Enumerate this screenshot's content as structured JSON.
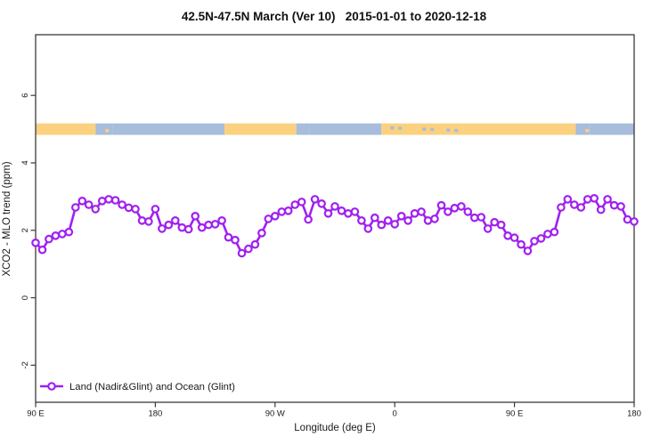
{
  "figure": {
    "title": "42.5N-47.5N March (Ver 10)   2015-01-01 to 2020-12-18"
  },
  "legend": {
    "label": "Land (Nadir&Glint) and Ocean (Glint)"
  },
  "colors": {
    "series": "#A020F0",
    "marker_fill": "#FFFFFF",
    "land_band": "#FBD17F",
    "ocean_band": "#A8BCDC",
    "axis": "#3A3A3A",
    "text": "#1A1A1A",
    "background": "#FFFFFF"
  },
  "chart_data": {
    "type": "line",
    "title": "42.5N-47.5N March (Ver 10)   2015-01-01 to 2020-12-18",
    "xlabel": "Longitude (deg E)",
    "ylabel": "XCO2 - MLO trend (ppm)",
    "xlim": [
      90,
      540
    ],
    "ylim": [
      -3.1,
      7.8
    ],
    "grid": false,
    "legend_position": "bottom-left",
    "x_ticks": [
      {
        "value": 90,
        "label": "90 E"
      },
      {
        "value": 180,
        "label": "180"
      },
      {
        "value": 270,
        "label": "90 W"
      },
      {
        "value": 360,
        "label": "0"
      },
      {
        "value": 450,
        "label": "90 E"
      },
      {
        "value": 540,
        "label": "180"
      }
    ],
    "y_ticks": [
      {
        "value": -2,
        "label": "-2"
      },
      {
        "value": 0,
        "label": "0"
      },
      {
        "value": 2,
        "label": "2"
      },
      {
        "value": 4,
        "label": "4"
      },
      {
        "value": 6,
        "label": "6"
      }
    ],
    "surface_band": {
      "description": "land (orange) / ocean (blue) strip drawn at y = 5 ppm",
      "y_center": 5.0,
      "y_half_height": 0.17,
      "segments": [
        {
          "type": "land",
          "from": 90,
          "to": 135
        },
        {
          "type": "coast",
          "from": 135,
          "to": 148
        },
        {
          "type": "ocean",
          "from": 148,
          "to": 232
        },
        {
          "type": "land",
          "from": 232,
          "to": 286
        },
        {
          "type": "coast",
          "from": 286,
          "to": 296
        },
        {
          "type": "ocean",
          "from": 296,
          "to": 350
        },
        {
          "type": "land_with_seas",
          "from": 350,
          "to": 411
        },
        {
          "type": "land",
          "from": 411,
          "to": 496
        },
        {
          "type": "coast",
          "from": 496,
          "to": 507
        },
        {
          "type": "ocean",
          "from": 507,
          "to": 540
        }
      ]
    },
    "series": [
      {
        "name": "Land (Nadir&Glint) and Ocean (Glint)",
        "x": [
          90,
          95,
          100,
          105,
          110,
          115,
          120,
          125,
          130,
          135,
          140,
          145,
          150,
          155,
          160,
          165,
          170,
          175,
          180,
          185,
          190,
          195,
          200,
          205,
          210,
          215,
          220,
          225,
          230,
          235,
          240,
          245,
          250,
          255,
          260,
          265,
          270,
          275,
          280,
          285,
          290,
          295,
          300,
          305,
          310,
          315,
          320,
          325,
          330,
          335,
          340,
          345,
          350,
          355,
          360,
          365,
          370,
          375,
          380,
          385,
          390,
          395,
          400,
          405,
          410,
          415,
          420,
          425,
          430,
          435,
          440,
          445,
          450,
          455,
          460,
          465,
          470,
          475,
          480,
          485,
          490,
          495,
          500,
          505,
          510,
          515,
          520,
          525,
          530,
          535,
          540
        ],
        "values": [
          1.63,
          1.42,
          1.74,
          1.84,
          1.89,
          1.95,
          2.68,
          2.87,
          2.76,
          2.63,
          2.87,
          2.92,
          2.89,
          2.76,
          2.67,
          2.63,
          2.29,
          2.26,
          2.63,
          2.05,
          2.16,
          2.29,
          2.08,
          2.03,
          2.42,
          2.08,
          2.16,
          2.18,
          2.29,
          1.79,
          1.71,
          1.32,
          1.45,
          1.58,
          1.92,
          2.34,
          2.42,
          2.55,
          2.58,
          2.76,
          2.84,
          2.32,
          2.92,
          2.79,
          2.5,
          2.71,
          2.58,
          2.5,
          2.55,
          2.29,
          2.05,
          2.37,
          2.16,
          2.29,
          2.18,
          2.42,
          2.29,
          2.5,
          2.55,
          2.29,
          2.34,
          2.74,
          2.55,
          2.66,
          2.71,
          2.55,
          2.37,
          2.39,
          2.05,
          2.24,
          2.16,
          1.84,
          1.78,
          1.58,
          1.39,
          1.68,
          1.76,
          1.89,
          1.95,
          2.68,
          2.92,
          2.76,
          2.68,
          2.92,
          2.95,
          2.61,
          2.92,
          2.74,
          2.71,
          2.32,
          2.26
        ]
      }
    ]
  }
}
